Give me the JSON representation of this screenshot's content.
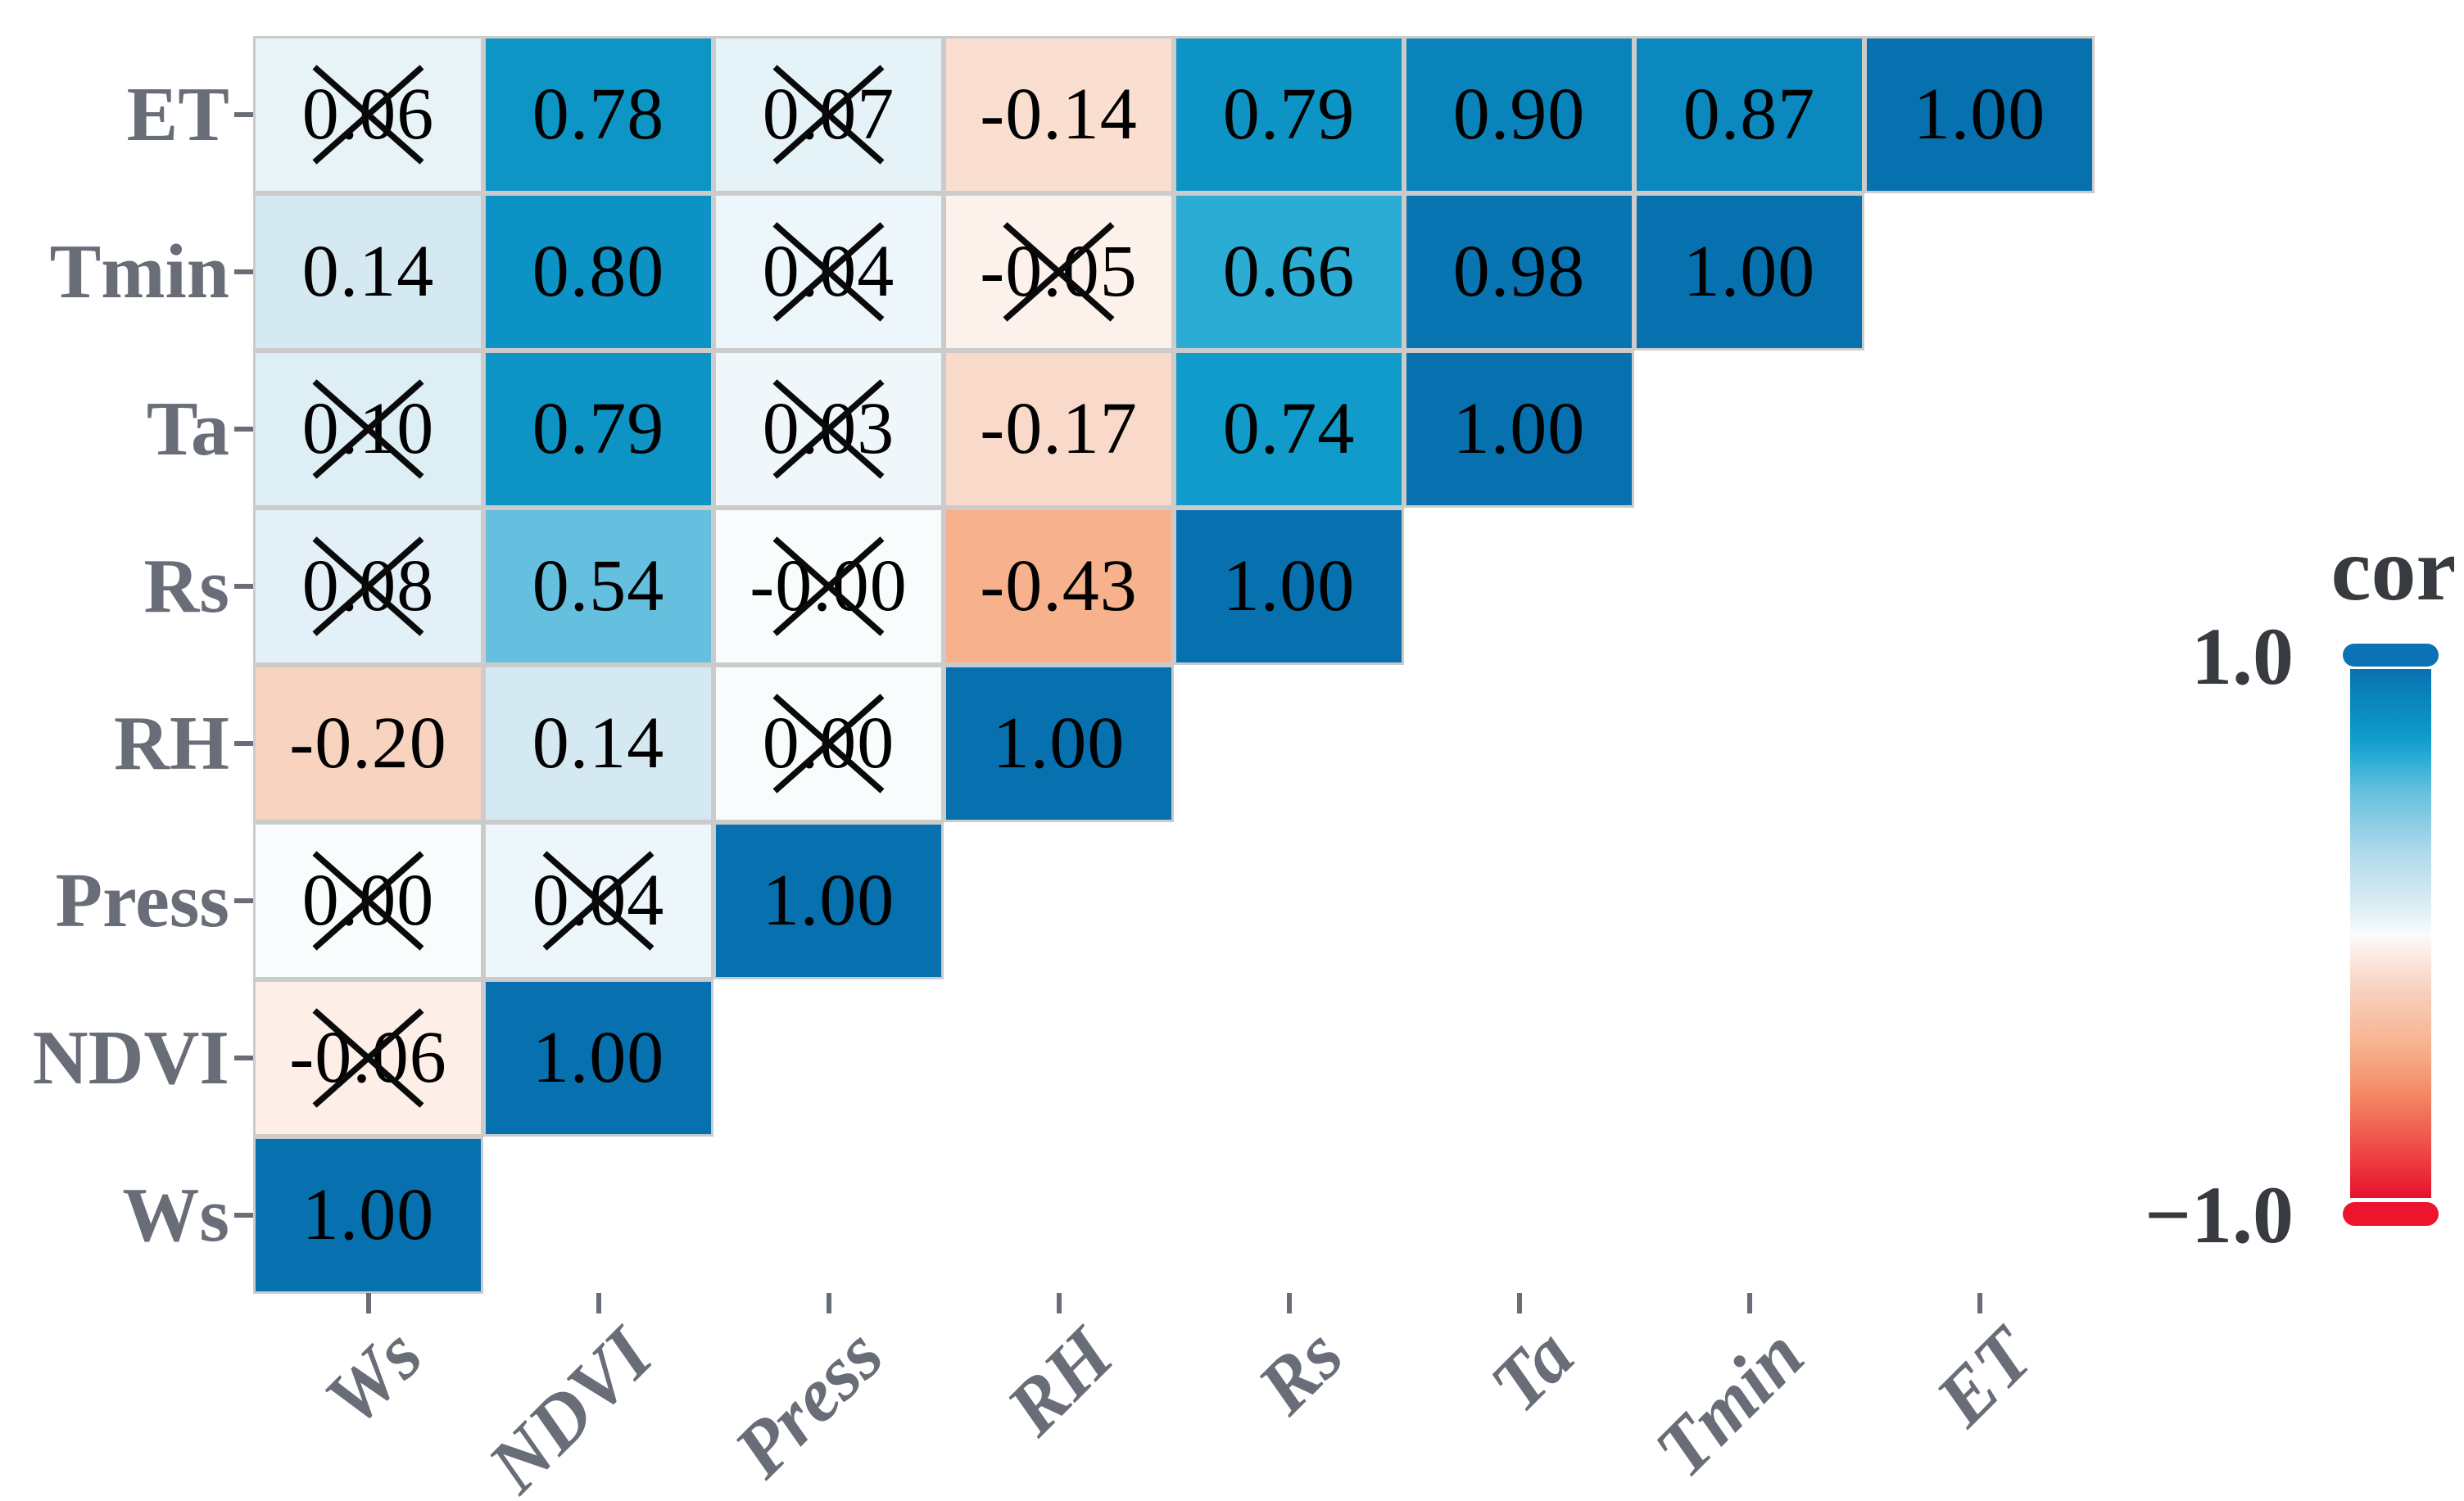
{
  "chart_data": {
    "type": "heatmap",
    "title": "",
    "description": "Lower-triangular Pearson correlation matrix; crossed cells are not statistically significant",
    "legend": {
      "title": "cor",
      "top_label": "1.0",
      "bottom_label": "−1.0",
      "max": 1.0,
      "min": -1.0,
      "position": "right"
    },
    "x_categories": [
      "Ws",
      "NDVI",
      "Press",
      "RH",
      "Rs",
      "Ta",
      "Tmin",
      "ET"
    ],
    "y_categories": [
      "ET",
      "Tmin",
      "Ta",
      "Rs",
      "RH",
      "Press",
      "NDVI",
      "Ws"
    ],
    "rows": [
      {
        "label": "ET",
        "cells": [
          {
            "col": "Ws",
            "text": "0.06",
            "crossed": true
          },
          {
            "col": "NDVI",
            "text": "0.78",
            "crossed": false
          },
          {
            "col": "Press",
            "text": "0.07",
            "crossed": true
          },
          {
            "col": "RH",
            "text": "-0.14",
            "crossed": false
          },
          {
            "col": "Rs",
            "text": "0.79",
            "crossed": false
          },
          {
            "col": "Ta",
            "text": "0.90",
            "crossed": false
          },
          {
            "col": "Tmin",
            "text": "0.87",
            "crossed": false
          },
          {
            "col": "ET",
            "text": "1.00",
            "crossed": false
          }
        ]
      },
      {
        "label": "Tmin",
        "cells": [
          {
            "col": "Ws",
            "text": "0.14",
            "crossed": false
          },
          {
            "col": "NDVI",
            "text": "0.80",
            "crossed": false
          },
          {
            "col": "Press",
            "text": "0.04",
            "crossed": true
          },
          {
            "col": "RH",
            "text": "-0.05",
            "crossed": true
          },
          {
            "col": "Rs",
            "text": "0.66",
            "crossed": false
          },
          {
            "col": "Ta",
            "text": "0.98",
            "crossed": false
          },
          {
            "col": "Tmin",
            "text": "1.00",
            "crossed": false
          }
        ]
      },
      {
        "label": "Ta",
        "cells": [
          {
            "col": "Ws",
            "text": "0.10",
            "crossed": true
          },
          {
            "col": "NDVI",
            "text": "0.79",
            "crossed": false
          },
          {
            "col": "Press",
            "text": "0.03",
            "crossed": true
          },
          {
            "col": "RH",
            "text": "-0.17",
            "crossed": false
          },
          {
            "col": "Rs",
            "text": "0.74",
            "crossed": false
          },
          {
            "col": "Ta",
            "text": "1.00",
            "crossed": false
          }
        ]
      },
      {
        "label": "Rs",
        "cells": [
          {
            "col": "Ws",
            "text": "0.08",
            "crossed": true
          },
          {
            "col": "NDVI",
            "text": "0.54",
            "crossed": false
          },
          {
            "col": "Press",
            "text": "-0.00",
            "crossed": true
          },
          {
            "col": "RH",
            "text": "-0.43",
            "crossed": false
          },
          {
            "col": "Rs",
            "text": "1.00",
            "crossed": false
          }
        ]
      },
      {
        "label": "RH",
        "cells": [
          {
            "col": "Ws",
            "text": "-0.20",
            "crossed": false
          },
          {
            "col": "NDVI",
            "text": "0.14",
            "crossed": false
          },
          {
            "col": "Press",
            "text": "0.00",
            "crossed": true
          },
          {
            "col": "RH",
            "text": "1.00",
            "crossed": false
          }
        ]
      },
      {
        "label": "Press",
        "cells": [
          {
            "col": "Ws",
            "text": "0.00",
            "crossed": true
          },
          {
            "col": "NDVI",
            "text": "0.04",
            "crossed": true
          },
          {
            "col": "Press",
            "text": "1.00",
            "crossed": false
          }
        ]
      },
      {
        "label": "NDVI",
        "cells": [
          {
            "col": "Ws",
            "text": "-0.06",
            "crossed": true
          },
          {
            "col": "NDVI",
            "text": "1.00",
            "crossed": false
          }
        ]
      },
      {
        "label": "Ws",
        "cells": [
          {
            "col": "Ws",
            "text": "1.00",
            "crossed": false
          }
        ]
      }
    ],
    "palette_stops": [
      {
        "v": -1.0,
        "c": "#e8112d"
      },
      {
        "v": -0.6,
        "c": "#f48b66"
      },
      {
        "v": -0.43,
        "c": "#f7b18d"
      },
      {
        "v": -0.2,
        "c": "#f8d3c0"
      },
      {
        "v": -0.05,
        "c": "#fdf1eb"
      },
      {
        "v": 0.0,
        "c": "#f9fcfd"
      },
      {
        "v": 0.05,
        "c": "#eaf4f9"
      },
      {
        "v": 0.14,
        "c": "#d5e9f2"
      },
      {
        "v": 0.3,
        "c": "#afdbec"
      },
      {
        "v": 0.54,
        "c": "#65bfde"
      },
      {
        "v": 0.66,
        "c": "#2aacd4"
      },
      {
        "v": 0.74,
        "c": "#109bca"
      },
      {
        "v": 0.8,
        "c": "#0c92c4"
      },
      {
        "v": 0.9,
        "c": "#0a83bb"
      },
      {
        "v": 1.0,
        "c": "#0771b0"
      }
    ],
    "colors": {
      "background": "#ffffff",
      "axis_label": "#686d77",
      "legend_label": "#373a3e",
      "cell_border": "#cbcbcb",
      "cell_text": "#000000",
      "cross": "#0a0a0a",
      "legend_top_cap": "#0b72b4",
      "legend_bottom_cap": "#ed152e"
    }
  }
}
